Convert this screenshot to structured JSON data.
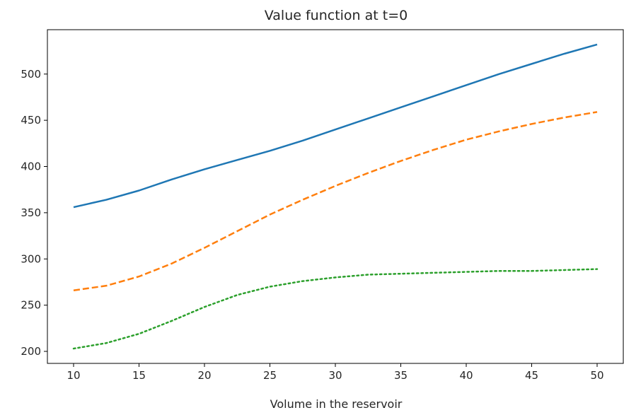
{
  "chart_data": {
    "type": "line",
    "title": "Value function at t=0",
    "xlabel": "Volume in the reservoir",
    "ylabel": "",
    "xlim": [
      8,
      52
    ],
    "ylim": [
      187,
      548
    ],
    "xticks": [
      10,
      15,
      20,
      25,
      30,
      35,
      40,
      45,
      50
    ],
    "yticks": [
      200,
      250,
      300,
      350,
      400,
      450,
      500
    ],
    "grid": false,
    "legend": "none",
    "series": [
      {
        "color": "#1f77b4",
        "linestyle": "solid",
        "x": [
          10,
          12.5,
          15,
          17.5,
          20,
          22.5,
          25,
          27.5,
          30,
          32.5,
          35,
          37.5,
          40,
          42.5,
          45,
          47.5,
          50
        ],
        "y": [
          356,
          364,
          374,
          386,
          397,
          407,
          417,
          428,
          440,
          452,
          464,
          476,
          488,
          500,
          511,
          522,
          532
        ]
      },
      {
        "color": "#ff7f0e",
        "linestyle": "dashed",
        "x": [
          10,
          12.5,
          15,
          17.5,
          20,
          22.5,
          25,
          27.5,
          30,
          32.5,
          35,
          37.5,
          40,
          42.5,
          45,
          47.5,
          50
        ],
        "y": [
          266,
          271,
          281,
          295,
          312,
          330,
          348,
          364,
          379,
          393,
          406,
          418,
          429,
          438,
          446,
          453,
          459
        ]
      },
      {
        "color": "#2ca02c",
        "linestyle": "dotted",
        "x": [
          10,
          12.5,
          15,
          17.5,
          20,
          22.5,
          25,
          27.5,
          30,
          32.5,
          35,
          37.5,
          40,
          42.5,
          45,
          47.5,
          50
        ],
        "y": [
          203,
          209,
          219,
          233,
          248,
          261,
          270,
          276,
          280,
          283,
          284,
          285,
          286,
          287,
          287,
          288,
          289
        ]
      }
    ]
  }
}
